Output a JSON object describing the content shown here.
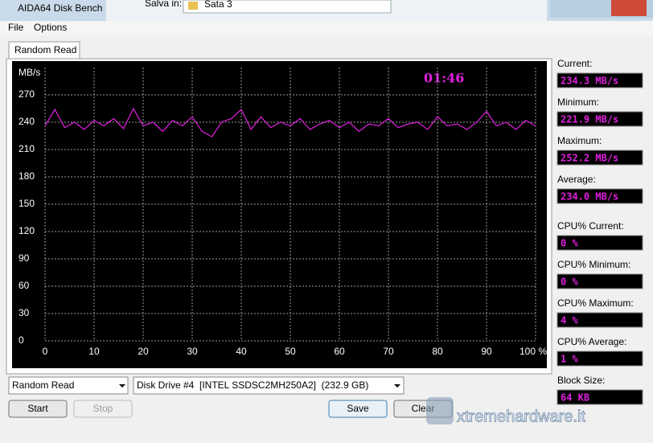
{
  "window": {
    "title": "AIDA64 Disk Bench",
    "save_in_label": "Salva in:",
    "folder": "Sata 3"
  },
  "menu": [
    "File",
    "Options"
  ],
  "tab": "Random Read",
  "chart_data": {
    "type": "line",
    "overlay_time": "01:46",
    "y_unit": "MB/s",
    "x": [
      0,
      2,
      4,
      6,
      8,
      10,
      12,
      14,
      16,
      18,
      20,
      22,
      24,
      26,
      28,
      30,
      32,
      34,
      36,
      38,
      40,
      42,
      44,
      46,
      48,
      50,
      52,
      54,
      56,
      58,
      60,
      62,
      64,
      66,
      68,
      70,
      72,
      74,
      76,
      78,
      80,
      82,
      84,
      86,
      88,
      90,
      92,
      94,
      96,
      98,
      100
    ],
    "series": [
      {
        "color": "#e020e0",
        "values": [
          236,
          254,
          234,
          240,
          232,
          242,
          236,
          244,
          233,
          255,
          236,
          240,
          230,
          242,
          236,
          246,
          230,
          224,
          240,
          244,
          254,
          232,
          246,
          234,
          240,
          236,
          244,
          232,
          238,
          242,
          234,
          240,
          230,
          238,
          236,
          244,
          234,
          238,
          240,
          232,
          246,
          236,
          238,
          232,
          240,
          252,
          236,
          240,
          232,
          242,
          236
        ]
      }
    ],
    "xlim": [
      0,
      100
    ],
    "ylim": [
      0,
      270
    ],
    "xticks": [
      0,
      10,
      20,
      30,
      40,
      50,
      60,
      70,
      80,
      90,
      {
        "value": 100,
        "label": "100 %"
      }
    ],
    "yticks": [
      0,
      30,
      60,
      90,
      120,
      150,
      180,
      210,
      240,
      270
    ],
    "grid": true
  },
  "stats": [
    {
      "label": "Current:",
      "value": "234.3 MB/s"
    },
    {
      "label": "Minimum:",
      "value": "221.9 MB/s"
    },
    {
      "label": "Maximum:",
      "value": "252.2 MB/s"
    },
    {
      "label": "Average:",
      "value": "234.0 MB/s"
    },
    {
      "label": "CPU% Current:",
      "value": "0 %"
    },
    {
      "label": "CPU% Minimum:",
      "value": "0 %"
    },
    {
      "label": "CPU% Maximum:",
      "value": "4 %"
    },
    {
      "label": "CPU% Average:",
      "value": "1 %"
    },
    {
      "label": "Block Size:",
      "value": "64 KB"
    }
  ],
  "controls": {
    "test_select": "Random Read",
    "drive_select": "Disk Drive #4  [INTEL SSDSC2MH250A2]  (232.9 GB)",
    "buttons": [
      "Start",
      "Stop",
      "Save",
      "Clear"
    ]
  },
  "watermark": "xtremehardware.it"
}
